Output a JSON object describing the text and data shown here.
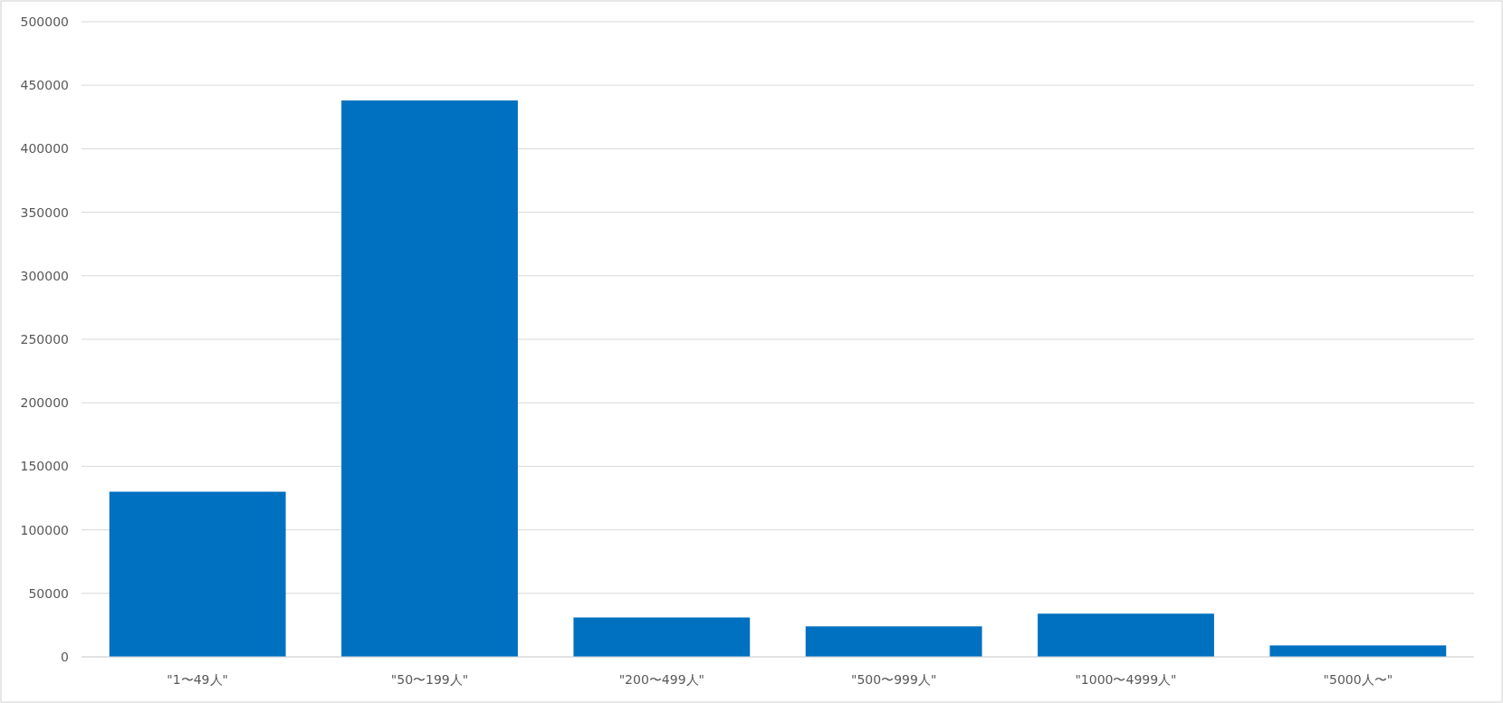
{
  "chart_data": {
    "type": "bar",
    "categories": [
      "\"1〜49人\"",
      "\"50〜199人\"",
      "\"200〜499人\"",
      "\"500〜999人\"",
      "\"1000〜4999人\"",
      "\"5000人〜\""
    ],
    "values": [
      130000,
      438000,
      31000,
      24000,
      34000,
      9000
    ],
    "color": "#0070c0",
    "ylim": [
      0,
      500000
    ],
    "yticks": [
      0,
      50000,
      100000,
      150000,
      200000,
      250000,
      300000,
      350000,
      400000,
      450000,
      500000
    ],
    "grid": "y"
  }
}
